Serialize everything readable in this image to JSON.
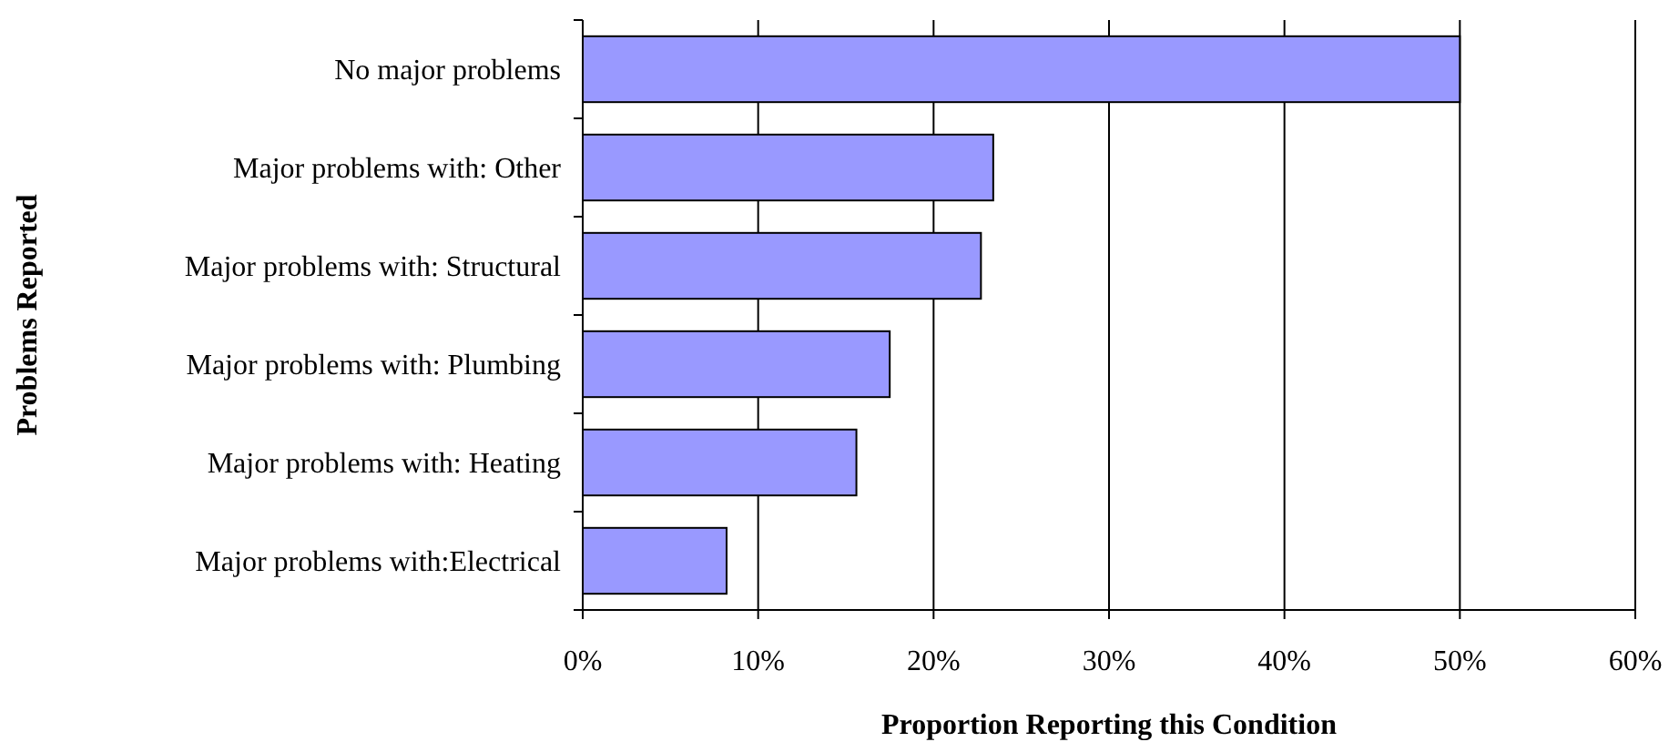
{
  "chart_data": {
    "type": "bar",
    "orientation": "horizontal",
    "xlabel": "Proportion Reporting this Condition",
    "ylabel": "Problems Reported",
    "categories": [
      "No major problems",
      "Major problems with: Other",
      "Major problems with: Structural",
      "Major problems with: Plumbing",
      "Major problems with: Heating",
      "Major problems with:Electrical"
    ],
    "values": [
      50.0,
      23.4,
      22.7,
      17.5,
      15.6,
      8.2
    ],
    "color": "#9999ff",
    "xlim": [
      0,
      60
    ],
    "xticks": [
      {
        "value": 0,
        "label": "0%"
      },
      {
        "value": 10,
        "label": "10%"
      },
      {
        "value": 20,
        "label": "20%"
      },
      {
        "value": 30,
        "label": "30%"
      },
      {
        "value": 40,
        "label": "40%"
      },
      {
        "value": 50,
        "label": "50%"
      },
      {
        "value": 60,
        "label": "60%"
      }
    ],
    "grid": "x"
  }
}
